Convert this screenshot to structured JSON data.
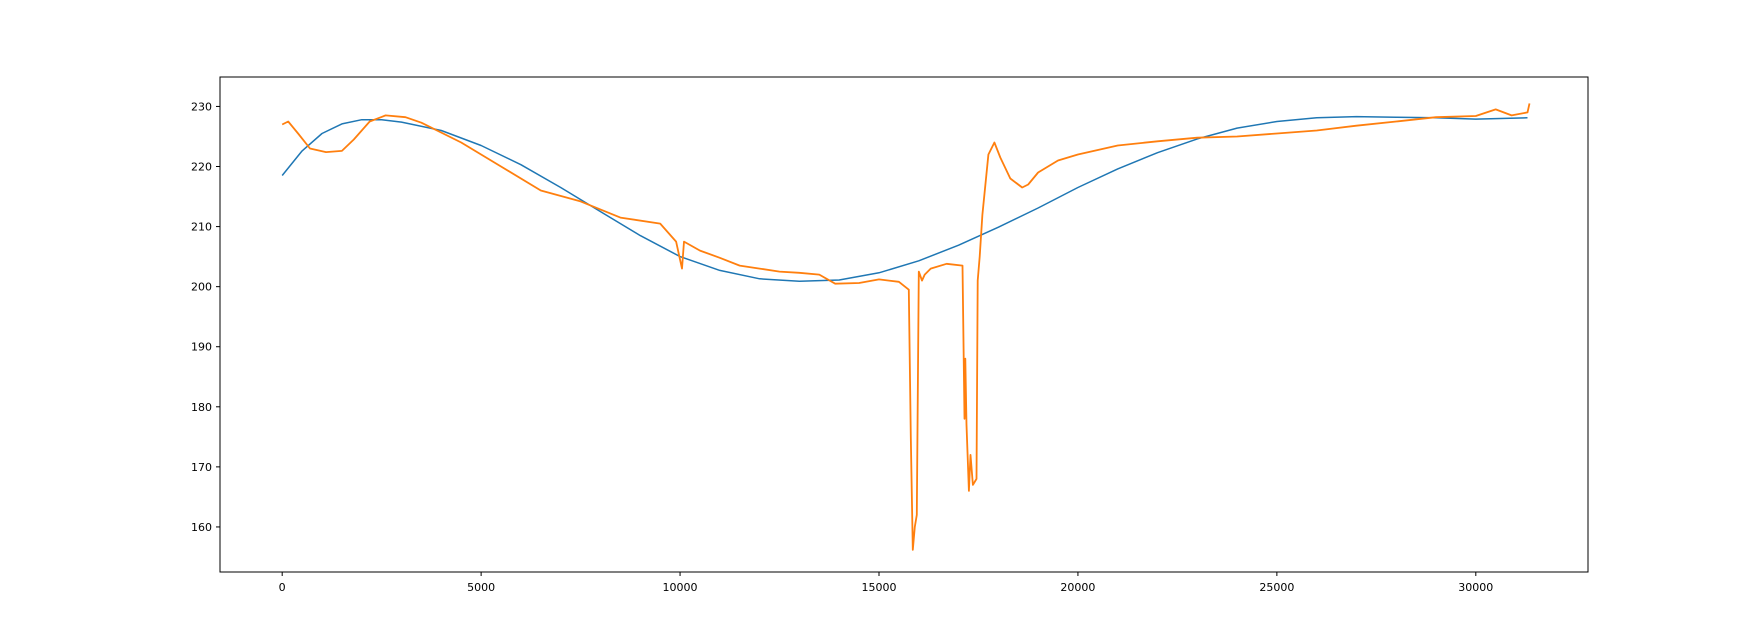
{
  "chart_data": {
    "type": "line",
    "title": "",
    "xlabel": "",
    "ylabel": "",
    "xlim": [
      -1563,
      32820
    ],
    "ylim": [
      152.5,
      234.9
    ],
    "x_ticks": [
      0,
      5000,
      10000,
      15000,
      20000,
      25000,
      30000
    ],
    "y_ticks": [
      160,
      170,
      180,
      190,
      200,
      210,
      220,
      230
    ],
    "x_tick_labels": [
      "0",
      "5000",
      "10000",
      "15000",
      "20000",
      "25000",
      "30000"
    ],
    "y_tick_labels": [
      "160",
      "170",
      "180",
      "190",
      "200",
      "210",
      "220",
      "230"
    ],
    "grid": false,
    "legend": "none",
    "series": [
      {
        "color": "#1f77b4",
        "x": [
          0,
          500,
          1000,
          1500,
          2000,
          2500,
          3000,
          4000,
          5000,
          6000,
          7000,
          8000,
          9000,
          10000,
          11000,
          12000,
          13000,
          14000,
          15000,
          16000,
          17000,
          18000,
          19000,
          20000,
          21000,
          22000,
          23000,
          24000,
          25000,
          26000,
          27000,
          28000,
          29000,
          30000,
          31300
        ],
        "y": [
          218.5,
          222.6,
          225.5,
          227.1,
          227.8,
          227.8,
          227.4,
          226.0,
          223.5,
          220.3,
          216.5,
          212.5,
          208.5,
          205.0,
          202.7,
          201.3,
          200.9,
          201.1,
          202.3,
          204.3,
          206.9,
          209.9,
          213.1,
          216.5,
          219.6,
          222.3,
          224.6,
          226.4,
          227.5,
          228.1,
          228.3,
          228.2,
          228.1,
          227.9,
          228.1
        ]
      },
      {
        "color": "#ff7f0e",
        "x": [
          0,
          150,
          400,
          700,
          1100,
          1500,
          1800,
          2200,
          2600,
          3100,
          3500,
          4500,
          5500,
          6500,
          7500,
          8500,
          9500,
          9900,
          10050,
          10100,
          10500,
          11000,
          11500,
          12000,
          12500,
          13000,
          13500,
          13900,
          14500,
          15000,
          15500,
          15750,
          15800,
          15850,
          15900,
          15950,
          16000,
          16080,
          16150,
          16300,
          16700,
          17100,
          17150,
          17170,
          17200,
          17260,
          17300,
          17360,
          17450,
          17480,
          17530,
          17600,
          17750,
          17900,
          18050,
          18300,
          18600,
          18750,
          19000,
          19500,
          20000,
          21000,
          22000,
          23000,
          24000,
          25000,
          26000,
          27000,
          28000,
          29000,
          30000,
          30500,
          30900,
          31300,
          31350
        ],
        "y": [
          227.0,
          227.5,
          225.5,
          223.0,
          222.4,
          222.6,
          224.5,
          227.5,
          228.5,
          228.2,
          227.3,
          224.0,
          220.0,
          216.0,
          214.2,
          211.5,
          210.5,
          207.5,
          203.0,
          207.5,
          206.0,
          204.8,
          203.5,
          203.0,
          202.5,
          202.3,
          202.0,
          200.5,
          200.6,
          201.2,
          200.8,
          199.5,
          175.0,
          156.2,
          160.0,
          162.0,
          202.5,
          201.0,
          202.0,
          203.0,
          203.8,
          203.5,
          178.0,
          188.0,
          177.0,
          166.0,
          172.0,
          167.0,
          168.0,
          201.0,
          205.0,
          212.0,
          222.0,
          224.0,
          221.5,
          218.0,
          216.5,
          217.0,
          219.0,
          221.0,
          222.0,
          223.5,
          224.2,
          224.8,
          225.0,
          225.5,
          226.0,
          226.8,
          227.5,
          228.2,
          228.4,
          229.5,
          228.5,
          229.0,
          230.5
        ]
      }
    ]
  }
}
